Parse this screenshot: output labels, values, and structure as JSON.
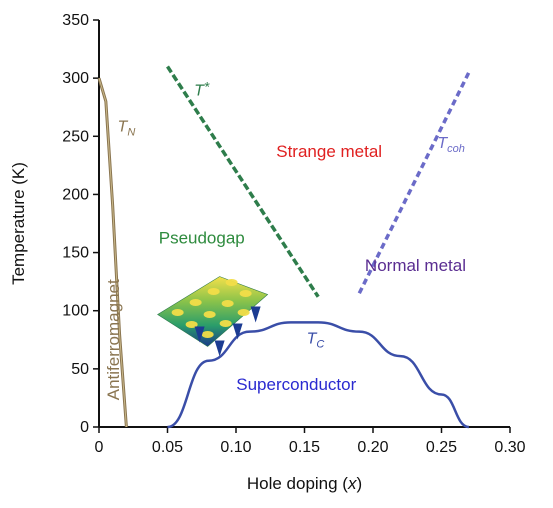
{
  "chart_data": {
    "type": "line",
    "title": "",
    "xlabel": "Hole doping (",
    "xlabel_var": "x",
    "xlabel_close": ")",
    "ylabel": "Temperature (K)",
    "xlim": [
      0,
      0.3
    ],
    "ylim": [
      0,
      350
    ],
    "xticks": [
      "0",
      "0.05",
      "0.10",
      "0.15",
      "0.20",
      "0.25",
      "0.30"
    ],
    "xtick_values": [
      0,
      0.05,
      0.1,
      0.15,
      0.2,
      0.25,
      0.3
    ],
    "yticks": [
      "0",
      "50",
      "100",
      "150",
      "200",
      "250",
      "300",
      "350"
    ],
    "ytick_values": [
      0,
      50,
      100,
      150,
      200,
      250,
      300,
      350
    ],
    "grid": false,
    "series": [
      {
        "name": "T_N",
        "label_main": "T",
        "label_sub": "N",
        "style": "solid",
        "color": "#8a7550",
        "x": [
          0,
          0.005,
          0.01,
          0.015,
          0.02
        ],
        "y": [
          300,
          280,
          190,
          80,
          0
        ]
      },
      {
        "name": "T*",
        "label_main": "T",
        "label_sub": "*",
        "style": "dashed",
        "color": "#2e7d4b",
        "x": [
          0.05,
          0.16
        ],
        "y": [
          310,
          112
        ]
      },
      {
        "name": "T_coh",
        "label_main": "T",
        "label_sub": "coh",
        "style": "dashed",
        "color": "#6b6bc8",
        "x": [
          0.19,
          0.27
        ],
        "y": [
          115,
          305
        ]
      },
      {
        "name": "T_C",
        "label_main": "T",
        "label_sub": "C",
        "style": "solid",
        "color": "#3a4ea8",
        "x": [
          0.05,
          0.08,
          0.11,
          0.14,
          0.16,
          0.19,
          0.22,
          0.25,
          0.27
        ],
        "y": [
          0,
          57,
          82,
          90,
          90,
          82,
          61,
          28,
          0
        ]
      }
    ],
    "regions": [
      {
        "label": "Strange metal",
        "color": "#e02020",
        "x": 0.168,
        "y": 232
      },
      {
        "label": "Pseudogap",
        "color": "#2e8b3e",
        "x": 0.075,
        "y": 158
      },
      {
        "label": "Normal metal",
        "color": "#5a2d91",
        "x": 0.231,
        "y": 134
      },
      {
        "label": "Superconductor",
        "color": "#2a2ad0",
        "x": 0.144,
        "y": 32
      },
      {
        "label": "Antiferromagnet",
        "color": "#8a7550",
        "x": 0.011,
        "y": 75,
        "rotate": -90
      }
    ],
    "curve_label_positions": {
      "T_N": {
        "x": 0.02,
        "y": 254
      },
      "T*": {
        "x": 0.075,
        "y": 285
      },
      "T_coh": {
        "x": 0.257,
        "y": 240
      },
      "T_C": {
        "x": 0.158,
        "y": 72
      }
    },
    "inset": {
      "description_icon": "3d-surface-plot-icon",
      "x": 0.072,
      "y": 95
    }
  }
}
